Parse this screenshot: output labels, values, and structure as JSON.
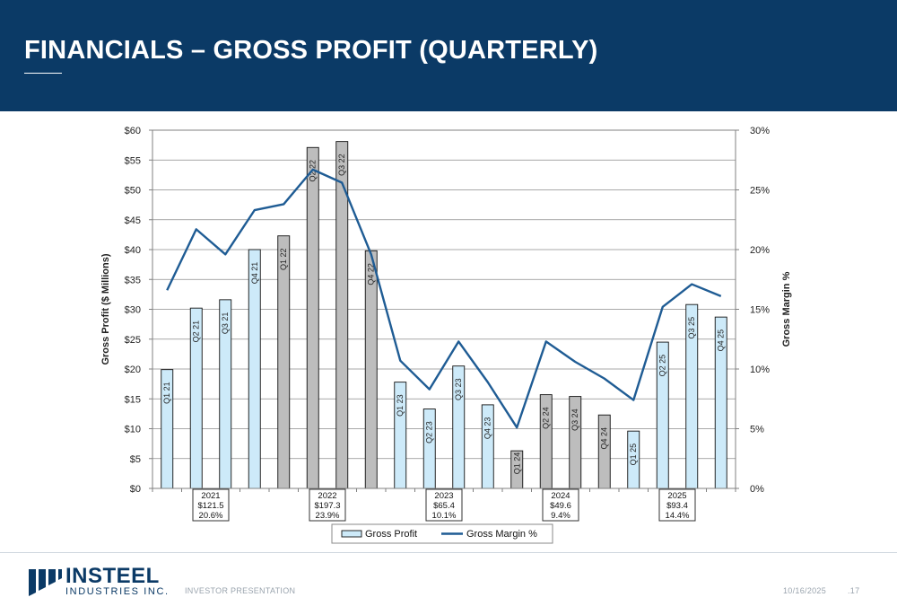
{
  "title": "FINANCIALS – GROSS PROFIT (QUARTERLY)",
  "chart_data": {
    "type": "bar+line",
    "categories": [
      "Q1 21",
      "Q2 21",
      "Q3 21",
      "Q4 21",
      "Q1 22",
      "Q2 22",
      "Q3 22",
      "Q4 22",
      "Q1 23",
      "Q2 23",
      "Q3 23",
      "Q4 23",
      "Q1 24",
      "Q2 24",
      "Q3 24",
      "Q4 24",
      "Q1 25",
      "Q2 25",
      "Q3 25",
      "Q4 25"
    ],
    "series": [
      {
        "name": "Gross Profit",
        "axis": "left",
        "type": "bar",
        "values": [
          19.9,
          30.2,
          31.6,
          40.0,
          42.3,
          57.1,
          58.1,
          39.8,
          17.8,
          13.3,
          20.5,
          14.0,
          6.3,
          15.7,
          15.4,
          12.3,
          9.6,
          24.5,
          30.8,
          28.7
        ]
      },
      {
        "name": "Gross Margin %",
        "axis": "right",
        "type": "line",
        "values": [
          16.6,
          21.7,
          19.6,
          23.3,
          23.8,
          26.7,
          25.6,
          19.6,
          10.7,
          8.3,
          12.3,
          8.9,
          5.1,
          12.3,
          10.6,
          9.2,
          7.4,
          15.2,
          17.1,
          16.1
        ]
      }
    ],
    "bar_fill": [
      "#cdeaf9",
      "#cdeaf9",
      "#cdeaf9",
      "#cdeaf9",
      "#bdbdbd",
      "#bdbdbd",
      "#bdbdbd",
      "#bdbdbd",
      "#cdeaf9",
      "#cdeaf9",
      "#cdeaf9",
      "#cdeaf9",
      "#bdbdbd",
      "#bdbdbd",
      "#bdbdbd",
      "#bdbdbd",
      "#cdeaf9",
      "#cdeaf9",
      "#cdeaf9",
      "#cdeaf9"
    ],
    "y_left": {
      "label": "Gross Profit ($ Millions)",
      "ticks": [
        "$0",
        "$5",
        "$10",
        "$15",
        "$20",
        "$25",
        "$30",
        "$35",
        "$40",
        "$45",
        "$50",
        "$55",
        "$60"
      ],
      "lim": [
        0,
        60
      ],
      "step": 5
    },
    "y_right": {
      "label": "Gross Margin %",
      "ticks": [
        "0%",
        "5%",
        "10%",
        "15%",
        "20%",
        "25%",
        "30%"
      ],
      "lim": [
        0,
        30
      ],
      "step": 5
    },
    "annual_boxes": [
      {
        "center_index": 1.5,
        "lines": [
          "2021",
          "$121.5",
          "20.6%"
        ]
      },
      {
        "center_index": 5.5,
        "lines": [
          "2022",
          "$197.3",
          "23.9%"
        ]
      },
      {
        "center_index": 9.5,
        "lines": [
          "2023",
          "$65.4",
          "10.1%"
        ]
      },
      {
        "center_index": 13.5,
        "lines": [
          "2024",
          "$49.6",
          "9.4%"
        ]
      },
      {
        "center_index": 17.5,
        "lines": [
          "2025",
          "$93.4",
          "14.4%"
        ]
      }
    ],
    "legend": {
      "position": "bottom",
      "entries": [
        "Gross Profit",
        "Gross Margin %"
      ]
    },
    "line_color": "#1f5c94"
  },
  "footer": {
    "company_name": "INSTEEL",
    "company_sub": "INDUSTRIES INC.",
    "presentation": "INVESTOR PRESENTATION",
    "date": "10/16/2025",
    "page": ".17"
  },
  "colors": {
    "header_bg": "#0b3a66",
    "footer_text": "#9aa4ae"
  }
}
